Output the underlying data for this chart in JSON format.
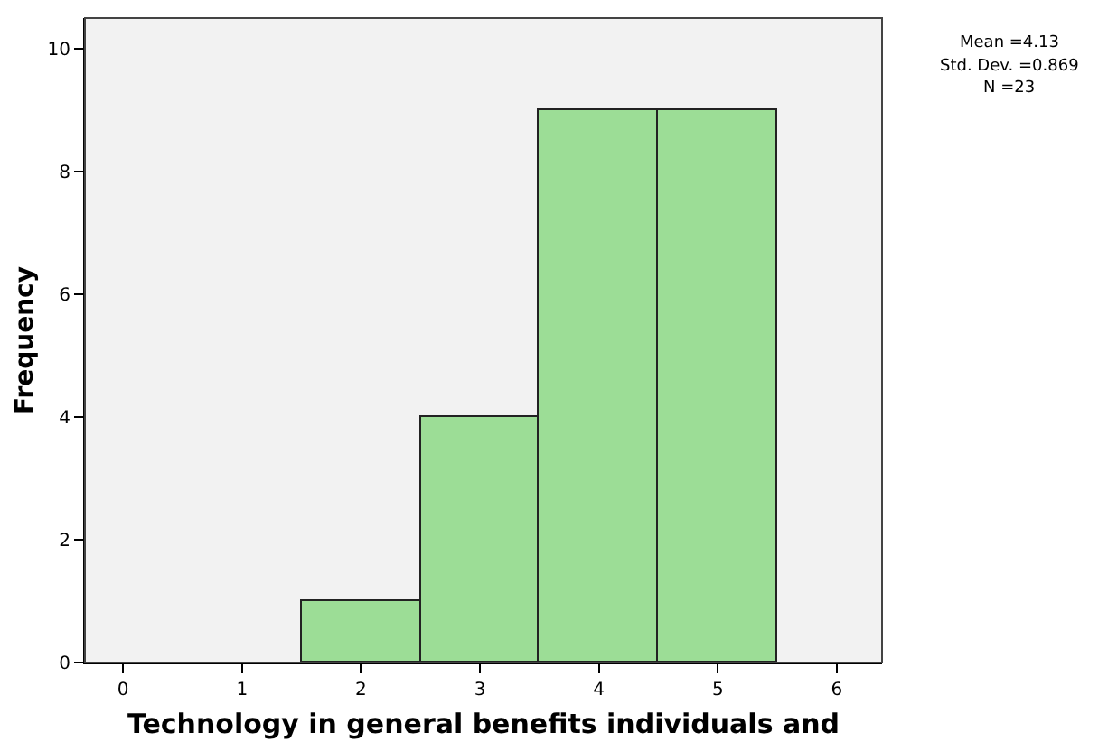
{
  "chart_data": {
    "type": "histogram",
    "bins": [
      1.5,
      2.5,
      3.5,
      4.5,
      5.5
    ],
    "values": [
      1,
      4,
      9,
      9
    ],
    "color": "#9cdd96",
    "xlabel": "Technology in general benefits individuals and",
    "ylabel": "Frequency",
    "xlim": [
      -0.32,
      6.38
    ],
    "xticks": [
      0,
      1,
      2,
      3,
      4,
      5,
      6
    ],
    "ylim": [
      0,
      10.5
    ],
    "yticks": [
      0,
      2,
      4,
      6,
      8,
      10
    ],
    "grid": false,
    "annotations": [
      "Mean =4.13",
      "Std. Dev. =0.869",
      "N =23"
    ]
  }
}
